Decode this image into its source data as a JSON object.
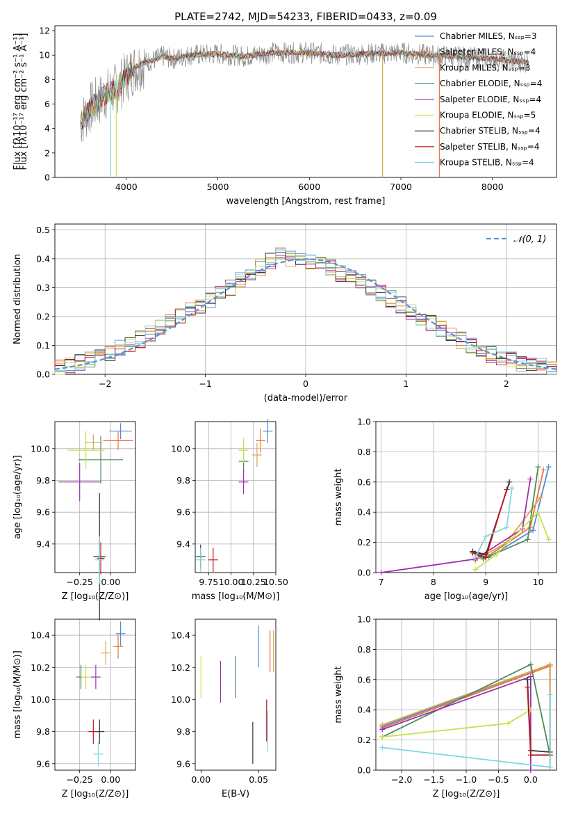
{
  "figure": {
    "title": "PLATE=2742, MJD=54233, FIBERID=0433, z=0.09"
  },
  "chart_data": [
    {
      "id": "spectrum",
      "type": "line",
      "xlabel": "wavelength [Angstrom, rest frame]",
      "ylabel": "Flux [fλ10⁻¹⁷ erg cm⁻² s⁻¹ A⁻¹]",
      "xlim": [
        3220,
        8700
      ],
      "ylim": [
        0,
        12.4
      ],
      "xticks": [
        4000,
        5000,
        6000,
        7000,
        8000
      ],
      "yticks": [
        0,
        2,
        4,
        6,
        8,
        10,
        12
      ],
      "data_points": {
        "x": [
          3500,
          3550,
          3600,
          3700,
          3800,
          3900,
          4000,
          4100,
          4200,
          4300,
          4400,
          4500,
          4700,
          5000,
          5300,
          5600,
          6000,
          6300,
          6600,
          7000,
          7300,
          7600,
          8000,
          8400
        ],
        "y": [
          4.5,
          5.0,
          5.6,
          6.3,
          6.9,
          7.3,
          8.2,
          9.0,
          9.4,
          9.6,
          9.9,
          9.7,
          10.0,
          10.1,
          9.9,
          10.2,
          10.2,
          10.0,
          10.1,
          10.2,
          10.0,
          9.9,
          9.7,
          9.4
        ]
      },
      "series": [
        {
          "name": "Chabrier MILES, Nₛₛₚ=3",
          "color": "#4f8bd6"
        },
        {
          "name": "Salpeter MILES, Nₛₛₚ=4",
          "color": "#e8733a"
        },
        {
          "name": "Kroupa MILES, Nₛₛₚ=3",
          "color": "#d9a44a"
        },
        {
          "name": "Chabrier ELODIE, Nₛₛₚ=4",
          "color": "#4f8a5a"
        },
        {
          "name": "Salpeter ELODIE, Nₛₛₚ=4",
          "color": "#9b30b0"
        },
        {
          "name": "Kroupa ELODIE, Nₛₛₚ=5",
          "color": "#c8e04a"
        },
        {
          "name": "Chabrier STELIB, Nₛₛₚ=4",
          "color": "#333333"
        },
        {
          "name": "Salpeter STELIB, Nₛₛₚ=4",
          "color": "#c0161b"
        },
        {
          "name": "Kroupa STELIB, Nₛₛₚ=4",
          "color": "#7fd6dc"
        }
      ],
      "legend": "top-right",
      "grid": false
    },
    {
      "id": "residuals",
      "type": "line",
      "xlabel": "(data-model)/error",
      "ylabel": "Normed distribution",
      "xlim": [
        -2.5,
        2.5
      ],
      "ylim": [
        0,
        0.52
      ],
      "xticks": [
        -2,
        -1,
        0,
        1,
        2
      ],
      "yticks": [
        0.0,
        0.1,
        0.2,
        0.3,
        0.4,
        0.5
      ],
      "legend_entry": "𝒩(0, 1)",
      "histogram_bin_centers": [
        -2.45,
        -2.35,
        -2.25,
        -2.15,
        -2.05,
        -1.95,
        -1.85,
        -1.75,
        -1.65,
        -1.55,
        -1.45,
        -1.35,
        -1.25,
        -1.15,
        -1.05,
        -0.95,
        -0.85,
        -0.75,
        -0.65,
        -0.55,
        -0.45,
        -0.35,
        -0.25,
        -0.15,
        -0.05,
        0.05,
        0.15,
        0.25,
        0.35,
        0.45,
        0.55,
        0.65,
        0.75,
        0.85,
        0.95,
        1.05,
        1.15,
        1.25,
        1.35,
        1.45,
        1.55,
        1.65,
        1.75,
        1.85,
        1.95,
        2.05,
        2.15,
        2.25,
        2.35,
        2.45
      ],
      "histogram_values": [
        0.02,
        0.03,
        0.04,
        0.05,
        0.06,
        0.07,
        0.09,
        0.1,
        0.12,
        0.14,
        0.16,
        0.18,
        0.2,
        0.22,
        0.24,
        0.26,
        0.28,
        0.3,
        0.33,
        0.35,
        0.37,
        0.39,
        0.41,
        0.4,
        0.4,
        0.39,
        0.38,
        0.37,
        0.35,
        0.34,
        0.32,
        0.3,
        0.28,
        0.26,
        0.24,
        0.22,
        0.2,
        0.18,
        0.16,
        0.14,
        0.12,
        0.1,
        0.09,
        0.07,
        0.06,
        0.05,
        0.04,
        0.04,
        0.03,
        0.02
      ],
      "grid": true,
      "legend": "top-right"
    },
    {
      "id": "age-vs-Z",
      "type": "scatter",
      "xlabel": "Z [log₁₀(Z/Z⊙)]",
      "ylabel": "age  [log₁₀(age/yr)]",
      "xlim": [
        -0.45,
        0.2
      ],
      "ylim": [
        9.22,
        10.17
      ],
      "xticks": [
        -0.25,
        0.0
      ],
      "yticks": [
        9.4,
        9.6,
        9.8,
        10.0
      ],
      "points": [
        {
          "x": 0.08,
          "y": 10.11,
          "xerr": 0.09,
          "yerr": 0.05
        },
        {
          "x": 0.06,
          "y": 10.05,
          "xerr": 0.12,
          "yerr": 0.06
        },
        {
          "x": -0.14,
          "y": 10.04,
          "xerr": 0.07,
          "yerr": 0.05
        },
        {
          "x": -0.08,
          "y": 9.93,
          "xerr": 0.18,
          "yerr": 0.15
        },
        {
          "x": -0.25,
          "y": 9.79,
          "xerr": 0.17,
          "yerr": 0.12
        },
        {
          "x": -0.2,
          "y": 9.99,
          "xerr": 0.15,
          "yerr": 0.12
        },
        {
          "x": -0.09,
          "y": 9.32,
          "xerr": 0.05,
          "yerr": 0.4
        },
        {
          "x": -0.08,
          "y": 9.31,
          "xerr": 0.03,
          "yerr": 0.1
        },
        {
          "x": -0.09,
          "y": 9.3,
          "xerr": 0.04,
          "yerr": 0.15
        }
      ],
      "grid": true
    },
    {
      "id": "age-vs-mass",
      "type": "scatter",
      "xlabel": "mass [log₁₀(M/M⊙)]",
      "xlim": [
        9.6,
        10.5
      ],
      "ylim": [
        9.22,
        10.17
      ],
      "xticks": [
        9.75,
        10.0,
        10.25,
        10.5
      ],
      "xticklabels": [
        "9.75",
        "10.00",
        "10.25",
        "10.50"
      ],
      "yticks": [
        9.4,
        9.6,
        9.8,
        10.0
      ],
      "points": [
        {
          "x": 10.41,
          "y": 10.11
        },
        {
          "x": 10.33,
          "y": 10.05
        },
        {
          "x": 10.29,
          "y": 9.96
        },
        {
          "x": 10.14,
          "y": 9.92
        },
        {
          "x": 10.14,
          "y": 9.79
        },
        {
          "x": 10.14,
          "y": 9.99
        },
        {
          "x": 9.66,
          "y": 9.32
        },
        {
          "x": 9.8,
          "y": 9.3
        },
        {
          "x": 9.66,
          "y": 9.3
        }
      ],
      "grid": true
    },
    {
      "id": "massweight-vs-age",
      "type": "line",
      "xlabel": "age  [log₁₀(age/yr)]",
      "ylabel": "mass weight",
      "xlim": [
        6.9,
        10.35
      ],
      "ylim": [
        0,
        1.0
      ],
      "xticks": [
        7,
        8,
        9,
        10
      ],
      "yticks": [
        0.0,
        0.2,
        0.4,
        0.6,
        0.8,
        1.0
      ],
      "series_points": [
        {
          "x": [
            8.75,
            9.05,
            9.9,
            10.2
          ],
          "y": [
            0.14,
            0.1,
            0.28,
            0.7
          ]
        },
        {
          "x": [
            8.8,
            9.0,
            9.85,
            10.1
          ],
          "y": [
            0.13,
            0.1,
            0.3,
            0.68
          ]
        },
        {
          "x": [
            8.8,
            9.0,
            9.4,
            10.05
          ],
          "y": [
            0.08,
            0.12,
            0.2,
            0.5
          ]
        },
        {
          "x": [
            8.75,
            8.95,
            9.8,
            10.0
          ],
          "y": [
            0.14,
            0.09,
            0.22,
            0.7
          ]
        },
        {
          "x": [
            7.0,
            8.8,
            9.7,
            9.85
          ],
          "y": [
            0.0,
            0.09,
            0.29,
            0.62
          ]
        },
        {
          "x": [
            8.8,
            9.2,
            10.0,
            10.2
          ],
          "y": [
            0.02,
            0.12,
            0.4,
            0.22
          ]
        },
        {
          "x": [
            8.75,
            9.0,
            9.45
          ],
          "y": [
            0.14,
            0.12,
            0.6
          ]
        },
        {
          "x": [
            8.75,
            9.0,
            9.4
          ],
          "y": [
            0.13,
            0.1,
            0.55
          ]
        },
        {
          "x": [
            8.8,
            9.0,
            9.4,
            9.5
          ],
          "y": [
            0.1,
            0.24,
            0.3,
            0.56
          ]
        }
      ],
      "grid": true
    },
    {
      "id": "mass-vs-Z",
      "type": "scatter",
      "xlabel": "Z [log₁₀(Z/Z⊙)]",
      "ylabel": "mass [log₁₀(M/M⊙)]",
      "xlim": [
        -0.45,
        0.2
      ],
      "ylim": [
        9.56,
        10.5
      ],
      "xticks": [
        -0.25,
        0.0
      ],
      "yticks": [
        9.6,
        9.8,
        10.0,
        10.2,
        10.4
      ],
      "points": [
        {
          "x": 0.08,
          "y": 10.41
        },
        {
          "x": 0.06,
          "y": 10.33
        },
        {
          "x": -0.04,
          "y": 10.29
        },
        {
          "x": -0.24,
          "y": 10.14
        },
        {
          "x": -0.12,
          "y": 10.14
        },
        {
          "x": -0.2,
          "y": 10.14
        },
        {
          "x": -0.09,
          "y": 9.8
        },
        {
          "x": -0.14,
          "y": 9.8
        },
        {
          "x": -0.1,
          "y": 9.66
        }
      ],
      "grid": true
    },
    {
      "id": "mass-vs-ebv",
      "type": "scatter",
      "xlabel": "E(B-V)",
      "xlim": [
        -0.005,
        0.065
      ],
      "ylim": [
        9.56,
        10.5
      ],
      "xticks": [
        0.0,
        0.05
      ],
      "xticklabels": [
        "0.00",
        "0.05"
      ],
      "yticks": [
        9.6,
        9.8,
        10.0,
        10.2,
        10.4
      ],
      "points": [
        {
          "x": 0.05,
          "y": 10.33
        },
        {
          "x": 0.06,
          "y": 10.3
        },
        {
          "x": 0.063,
          "y": 10.3
        },
        {
          "x": 0.03,
          "y": 10.14
        },
        {
          "x": 0.017,
          "y": 10.11
        },
        {
          "x": 0.0,
          "y": 10.14
        },
        {
          "x": 0.045,
          "y": 9.73
        },
        {
          "x": 0.057,
          "y": 9.87
        },
        {
          "x": 0.058,
          "y": 9.8
        }
      ],
      "grid": false
    },
    {
      "id": "massweight-vs-Z",
      "type": "line",
      "xlabel": "Z [log₁₀(Z/Z⊙)]",
      "ylabel": "mass weight",
      "xlim": [
        -2.4,
        0.4
      ],
      "ylim": [
        0,
        1.0
      ],
      "xticks": [
        -2.0,
        -1.5,
        -1.0,
        -0.5,
        0.0
      ],
      "yticks": [
        0.0,
        0.2,
        0.4,
        0.6,
        0.8,
        1.0
      ],
      "series_points": [
        {
          "x": [
            -2.3,
            0.3,
            0.3
          ],
          "y": [
            0.29,
            0.7,
            0.1
          ]
        },
        {
          "x": [
            -2.3,
            0.3,
            0.3
          ],
          "y": [
            0.28,
            0.69,
            0.02
          ]
        },
        {
          "x": [
            -2.3,
            0.3,
            0.3
          ],
          "y": [
            0.3,
            0.7,
            0.12
          ]
        },
        {
          "x": [
            -2.3,
            0.0,
            0.3
          ],
          "y": [
            0.22,
            0.7,
            0.1
          ]
        },
        {
          "x": [
            -2.3,
            0.0,
            0.0
          ],
          "y": [
            0.27,
            0.62,
            0.0
          ]
        },
        {
          "x": [
            -2.3,
            -0.35,
            0.0
          ],
          "y": [
            0.22,
            0.31,
            0.4
          ]
        },
        {
          "x": [
            -0.05,
            0.0,
            0.3
          ],
          "y": [
            0.6,
            0.13,
            0.12
          ]
        },
        {
          "x": [
            -0.05,
            0.0,
            0.3
          ],
          "y": [
            0.55,
            0.1,
            0.1
          ]
        },
        {
          "x": [
            -2.3,
            0.3,
            0.3
          ],
          "y": [
            0.15,
            0.02,
            0.5
          ]
        }
      ],
      "grid": true
    }
  ]
}
